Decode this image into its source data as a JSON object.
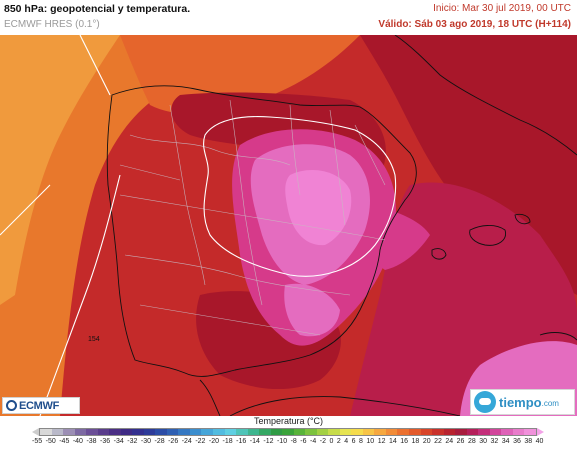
{
  "header": {
    "title": "850 hPa: geopotencial y temperatura.",
    "model": "ECMWF HRES (0.1°)",
    "init": "Inicio: Mar 30 jul 2019, 00 UTC",
    "valid": "Válido: Sáb 03 ago 2019, 18 UTC (H+114)"
  },
  "map": {
    "isoline_label": "154",
    "colors": {
      "orange": "#e8782c",
      "orange_light": "#f09a3d",
      "red": "#c42a2a",
      "dark_red": "#a8172a",
      "crimson": "#b81e4a",
      "magenta": "#d63a8a",
      "pink": "#e46cbf",
      "hot_pink": "#f083d4"
    }
  },
  "logos": {
    "ecmwf": "ECMWF",
    "tiempo_word": "tiempo",
    "tiempo_domain": ".com"
  },
  "legend": {
    "title": "Temperatura (°C)",
    "ticks": [
      "-55",
      "-50",
      "-45",
      "-40",
      "-38",
      "-36",
      "-34",
      "-32",
      "-30",
      "-28",
      "-26",
      "-24",
      "-22",
      "-20",
      "-18",
      "-16",
      "-14",
      "-12",
      "-10",
      "-8",
      "-6",
      "-4",
      "-2",
      "0",
      "2",
      "4",
      "6",
      "8",
      "10",
      "12",
      "14",
      "16",
      "18",
      "20",
      "22",
      "24",
      "26",
      "28",
      "30",
      "32",
      "34",
      "36",
      "38",
      "40"
    ],
    "colors": [
      "#d9d9d9",
      "#b9b9c9",
      "#9c8fb5",
      "#7d6aa3",
      "#6b4f97",
      "#5a3d8c",
      "#4b2f85",
      "#3e2a85",
      "#33308f",
      "#2d3b99",
      "#2b4ca6",
      "#2f60b3",
      "#3578c2",
      "#3c8fcf",
      "#46a6d9",
      "#52bce0",
      "#5fcfe2",
      "#4fc4b8",
      "#3fb68f",
      "#35a864",
      "#2f9b45",
      "#3aa33a",
      "#58b33a",
      "#7cc23e",
      "#a3d043",
      "#c7dc4a",
      "#e6e451",
      "#f5dc4c",
      "#f7c446",
      "#f6a83f",
      "#f28c38",
      "#ec7130",
      "#e35a2b",
      "#d84428",
      "#c9312a",
      "#b8232f",
      "#a81c3d",
      "#b51f5a",
      "#c42e7a",
      "#d2469c",
      "#de62b8",
      "#e87ccb",
      "#f091db"
    ]
  }
}
